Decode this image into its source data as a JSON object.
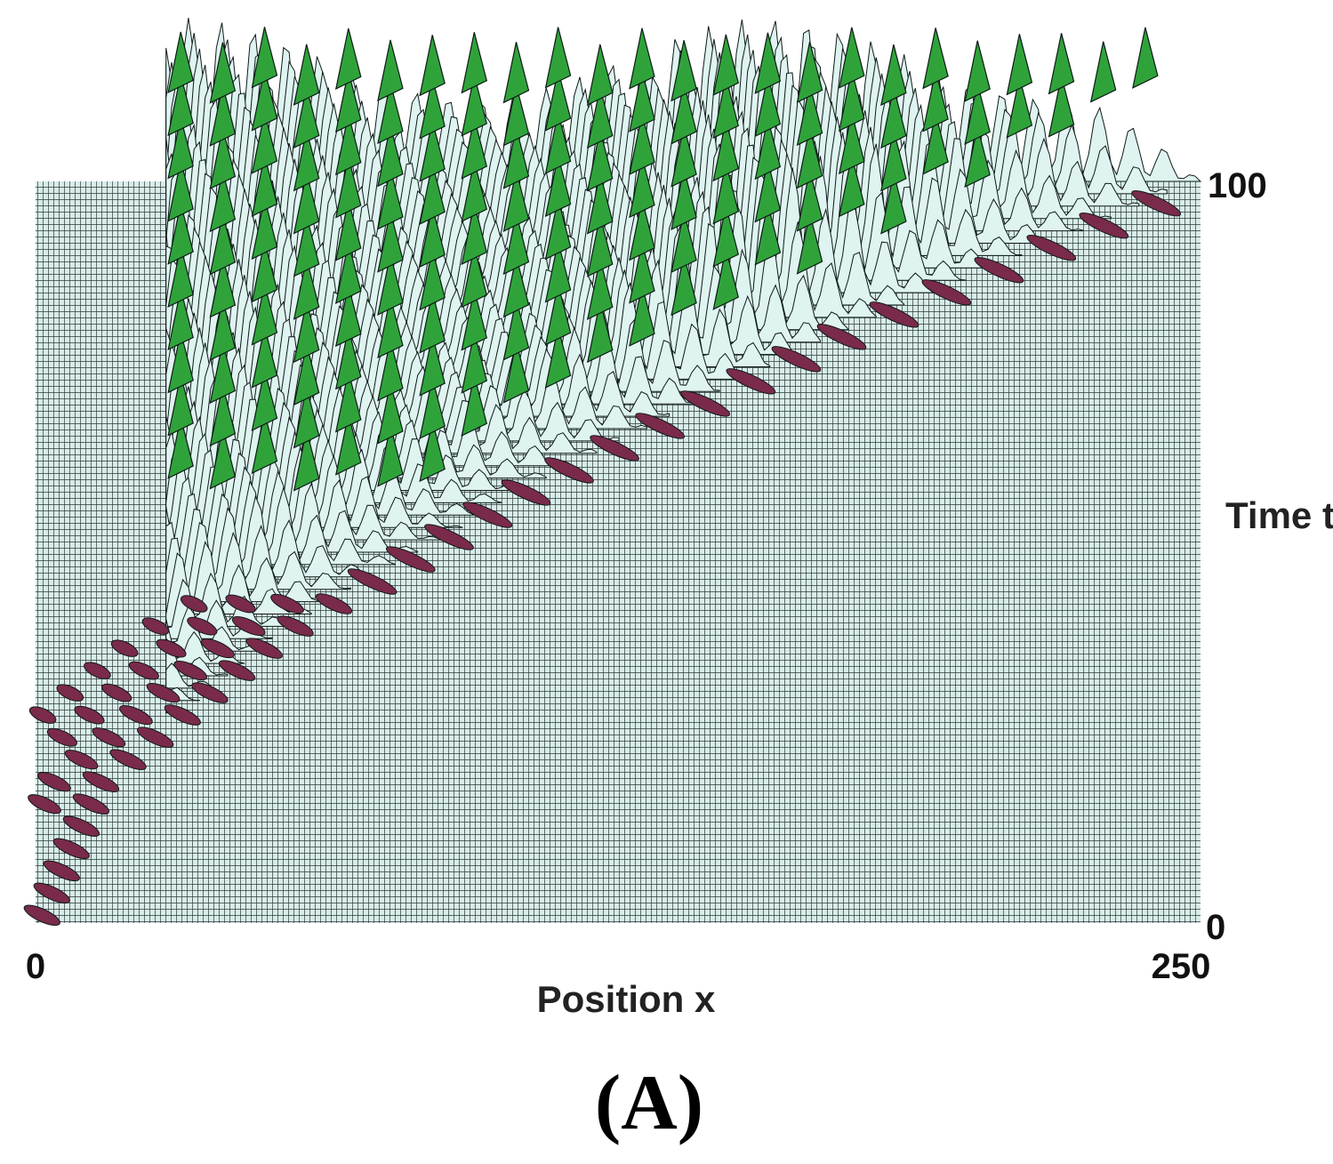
{
  "chart_data": {
    "type": "area",
    "subtype": "3d-waterfall-surface",
    "xlabel": "Position x",
    "ylabel": "Time t",
    "xlim": [
      0,
      250
    ],
    "ylim": [
      0,
      100
    ],
    "x_ticks": [
      "0",
      "250"
    ],
    "y_ticks": [
      "0",
      "100"
    ],
    "grid": true,
    "colors": {
      "floor_grid": "#2f3b3a",
      "floor_fill": "#d8ece9",
      "trough": "#7a2a4a",
      "crest": "#2fa33a",
      "surface": "#dff3f0",
      "outline": "#0e1a18"
    },
    "series": [
      {
        "values_description_only_for_script": false,
        "wave_fronts": [
          {
            "t": 0,
            "front_x": 2
          },
          {
            "t": 20,
            "front_x": 16
          },
          {
            "t": 40,
            "front_x": 55
          },
          {
            "t": 60,
            "front_x": 110
          },
          {
            "t": 80,
            "front_x": 175
          },
          {
            "t": 100,
            "front_x": 250
          }
        ]
      }
    ]
  },
  "panel_label": "(A)"
}
